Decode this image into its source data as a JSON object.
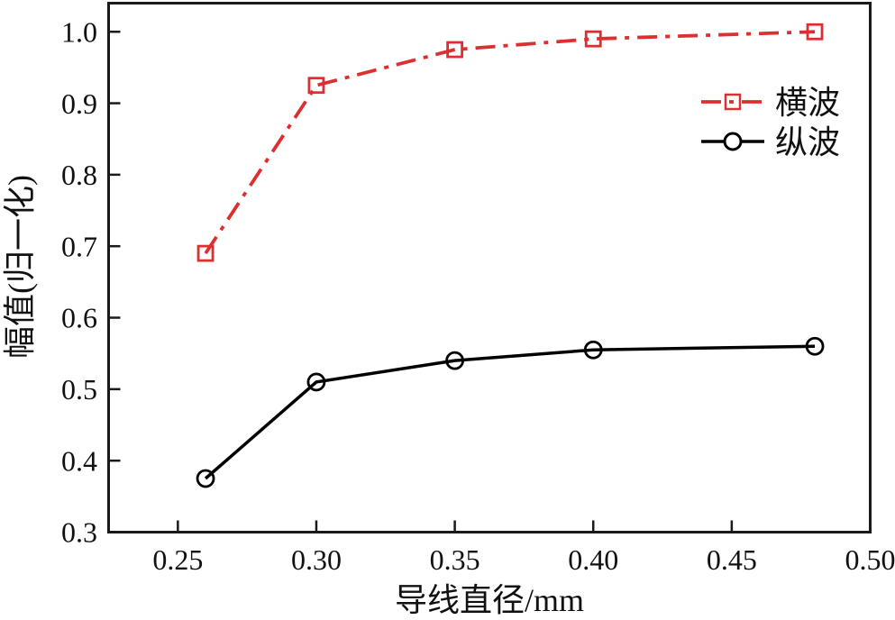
{
  "figure": {
    "background_color": "#ffffff",
    "axis_color": "#1a1a1a"
  },
  "chart_data": {
    "type": "line",
    "title": "",
    "xlabel": "导线直径/mm",
    "ylabel": "幅值(归一化)",
    "xlim": [
      0.225,
      0.5
    ],
    "ylim": [
      0.3,
      1.04
    ],
    "grid": false,
    "legend_position": "upper-right-inside",
    "x": [
      0.26,
      0.3,
      0.35,
      0.4,
      0.48
    ],
    "series": [
      {
        "key": "transverse-wave",
        "name": "横波",
        "values": [
          0.69,
          0.925,
          0.975,
          0.99,
          1.0
        ],
        "color": "#dd2f2f",
        "line_style": "dash-dot",
        "marker": "square"
      },
      {
        "key": "longitudinal-wave",
        "name": "纵波",
        "values": [
          0.375,
          0.51,
          0.54,
          0.555,
          0.56
        ],
        "color": "#000000",
        "line_style": "solid",
        "marker": "circle"
      }
    ],
    "xticks": {
      "values": [
        0.25,
        0.3,
        0.35,
        0.4,
        0.45,
        0.5
      ],
      "labels": [
        "0.25",
        "0.30",
        "0.35",
        "0.40",
        "0.45",
        "0.50"
      ]
    },
    "yticks": {
      "values": [
        0.3,
        0.4,
        0.5,
        0.6,
        0.7,
        0.8,
        0.9,
        1.0
      ],
      "labels": [
        "0.3",
        "0.4",
        "0.5",
        "0.6",
        "0.7",
        "0.8",
        "0.9",
        "1.0"
      ]
    }
  }
}
